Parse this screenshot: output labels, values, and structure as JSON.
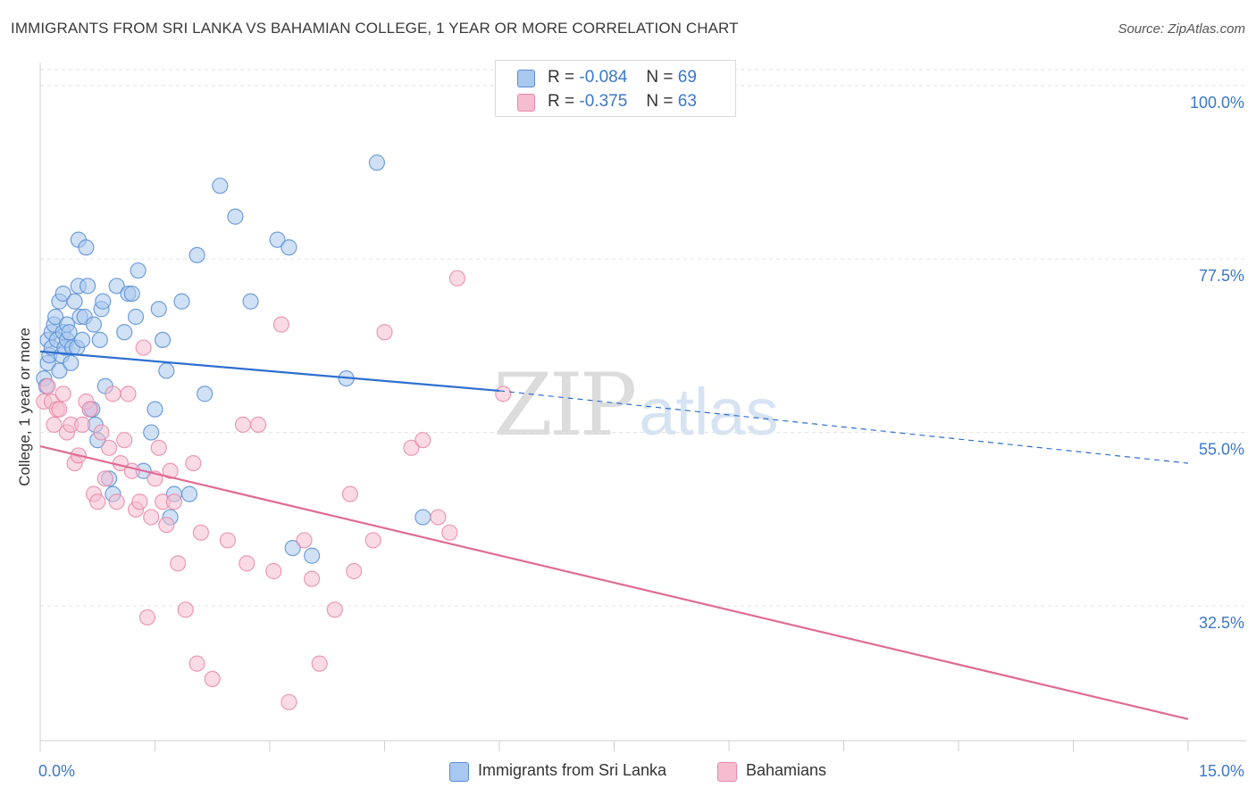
{
  "header": {
    "title": "IMMIGRANTS FROM SRI LANKA VS BAHAMIAN COLLEGE, 1 YEAR OR MORE CORRELATION CHART",
    "source": "Source: ZipAtlas.com"
  },
  "legend_top": {
    "rows": [
      {
        "r_label": "R =",
        "r_value": "-0.084",
        "n_label": "N =",
        "n_value": "69"
      },
      {
        "r_label": "R =",
        "r_value": "-0.375",
        "n_label": "N =",
        "n_value": "63"
      }
    ]
  },
  "legend_bottom": {
    "items": [
      {
        "label": "Immigrants from Sri Lanka"
      },
      {
        "label": "Bahamians"
      }
    ]
  },
  "watermark": {
    "part1": "ZIP",
    "part2": "atlas"
  },
  "colors": {
    "blue_fill": "#a9c8ef",
    "blue_stroke": "#5b8fd6",
    "blue_line": "#2e6fd0",
    "pink_fill": "#f6bdd0",
    "pink_stroke": "#e88aa8",
    "pink_line": "#e06b95",
    "tick_label": "#3b78c9",
    "grid": "#e3e3e3"
  },
  "chart_data": {
    "type": "scatter",
    "title": "IMMIGRANTS FROM SRI LANKA VS BAHAMIAN COLLEGE, 1 YEAR OR MORE CORRELATION CHART",
    "xlabel": "",
    "ylabel": "College, 1 year or more",
    "xlim": [
      0,
      15
    ],
    "ylim": [
      15,
      103
    ],
    "x_tick_labels": [
      {
        "value": 0,
        "label": "0.0%"
      },
      {
        "value": 15,
        "label": "15.0%"
      }
    ],
    "y_tick_labels": [
      {
        "value": 100,
        "label": "100.0%"
      },
      {
        "value": 77.5,
        "label": "77.5%"
      },
      {
        "value": 55,
        "label": "55.0%"
      },
      {
        "value": 32.5,
        "label": "32.5%"
      }
    ],
    "grid": true,
    "legend_placement": "bottom",
    "series": [
      {
        "name": "Immigrants from Sri Lanka",
        "color": "#5b8fd6",
        "r": -0.084,
        "n": 69,
        "trend": {
          "x0": 0,
          "y0": 65.5,
          "x1": 6.0,
          "y1": 60.4,
          "dash_to_x": 15,
          "dash_to_y": 51.0
        },
        "points": [
          [
            0.05,
            62
          ],
          [
            0.08,
            61
          ],
          [
            0.1,
            67
          ],
          [
            0.1,
            64
          ],
          [
            0.12,
            65
          ],
          [
            0.15,
            68
          ],
          [
            0.15,
            66
          ],
          [
            0.18,
            69
          ],
          [
            0.2,
            70
          ],
          [
            0.22,
            67
          ],
          [
            0.25,
            63
          ],
          [
            0.25,
            72
          ],
          [
            0.28,
            65
          ],
          [
            0.3,
            73
          ],
          [
            0.3,
            68
          ],
          [
            0.32,
            66
          ],
          [
            0.35,
            69
          ],
          [
            0.35,
            67
          ],
          [
            0.38,
            68
          ],
          [
            0.4,
            64
          ],
          [
            0.42,
            66
          ],
          [
            0.45,
            72
          ],
          [
            0.48,
            66
          ],
          [
            0.5,
            80
          ],
          [
            0.5,
            74
          ],
          [
            0.52,
            70
          ],
          [
            0.55,
            67
          ],
          [
            0.58,
            70
          ],
          [
            0.6,
            79
          ],
          [
            0.62,
            74
          ],
          [
            0.65,
            58
          ],
          [
            0.68,
            58
          ],
          [
            0.7,
            69
          ],
          [
            0.72,
            56
          ],
          [
            0.75,
            54
          ],
          [
            0.78,
            67
          ],
          [
            0.8,
            71
          ],
          [
            0.82,
            72
          ],
          [
            0.85,
            61
          ],
          [
            0.9,
            49
          ],
          [
            0.95,
            47
          ],
          [
            1.0,
            74
          ],
          [
            1.1,
            68
          ],
          [
            1.15,
            73
          ],
          [
            1.2,
            73
          ],
          [
            1.25,
            70
          ],
          [
            1.28,
            76
          ],
          [
            1.35,
            50
          ],
          [
            1.45,
            55
          ],
          [
            1.5,
            58
          ],
          [
            1.55,
            71
          ],
          [
            1.6,
            67
          ],
          [
            1.65,
            63
          ],
          [
            1.7,
            44
          ],
          [
            1.75,
            47
          ],
          [
            1.85,
            72
          ],
          [
            1.95,
            47
          ],
          [
            2.05,
            78
          ],
          [
            2.15,
            60
          ],
          [
            2.35,
            87
          ],
          [
            2.55,
            83
          ],
          [
            2.75,
            72
          ],
          [
            3.1,
            80
          ],
          [
            3.25,
            79
          ],
          [
            3.3,
            40
          ],
          [
            3.55,
            39
          ],
          [
            4.0,
            62
          ],
          [
            4.4,
            90
          ],
          [
            5.0,
            44
          ]
        ]
      },
      {
        "name": "Bahamians",
        "color": "#e88aa8",
        "r": -0.375,
        "n": 63,
        "trend": {
          "x0": 0,
          "y0": 53.2,
          "x1": 15,
          "y1": 17.8
        },
        "points": [
          [
            0.05,
            59
          ],
          [
            0.1,
            61
          ],
          [
            0.15,
            59
          ],
          [
            0.18,
            56
          ],
          [
            0.22,
            58
          ],
          [
            0.25,
            58
          ],
          [
            0.3,
            60
          ],
          [
            0.35,
            55
          ],
          [
            0.4,
            56
          ],
          [
            0.45,
            51
          ],
          [
            0.5,
            52
          ],
          [
            0.55,
            56
          ],
          [
            0.6,
            59
          ],
          [
            0.65,
            58
          ],
          [
            0.7,
            47
          ],
          [
            0.75,
            46
          ],
          [
            0.8,
            55
          ],
          [
            0.85,
            49
          ],
          [
            0.9,
            53
          ],
          [
            0.95,
            60
          ],
          [
            1.0,
            46
          ],
          [
            1.05,
            51
          ],
          [
            1.1,
            54
          ],
          [
            1.15,
            60
          ],
          [
            1.2,
            50
          ],
          [
            1.25,
            45
          ],
          [
            1.3,
            46
          ],
          [
            1.35,
            66
          ],
          [
            1.4,
            31
          ],
          [
            1.45,
            44
          ],
          [
            1.5,
            49
          ],
          [
            1.55,
            53
          ],
          [
            1.6,
            46
          ],
          [
            1.65,
            43
          ],
          [
            1.7,
            50
          ],
          [
            1.75,
            46
          ],
          [
            1.8,
            38
          ],
          [
            1.9,
            32
          ],
          [
            2.0,
            51
          ],
          [
            2.05,
            25
          ],
          [
            2.1,
            42
          ],
          [
            2.25,
            23
          ],
          [
            2.45,
            41
          ],
          [
            2.65,
            56
          ],
          [
            2.7,
            38
          ],
          [
            2.85,
            56
          ],
          [
            3.05,
            37
          ],
          [
            3.15,
            69
          ],
          [
            3.25,
            20
          ],
          [
            3.45,
            41
          ],
          [
            3.55,
            36
          ],
          [
            3.65,
            25
          ],
          [
            3.85,
            32
          ],
          [
            4.05,
            47
          ],
          [
            4.1,
            37
          ],
          [
            4.35,
            41
          ],
          [
            4.5,
            68
          ],
          [
            4.85,
            53
          ],
          [
            5.0,
            54
          ],
          [
            5.2,
            44
          ],
          [
            5.35,
            42
          ],
          [
            5.45,
            75
          ],
          [
            6.05,
            60
          ]
        ]
      }
    ]
  }
}
